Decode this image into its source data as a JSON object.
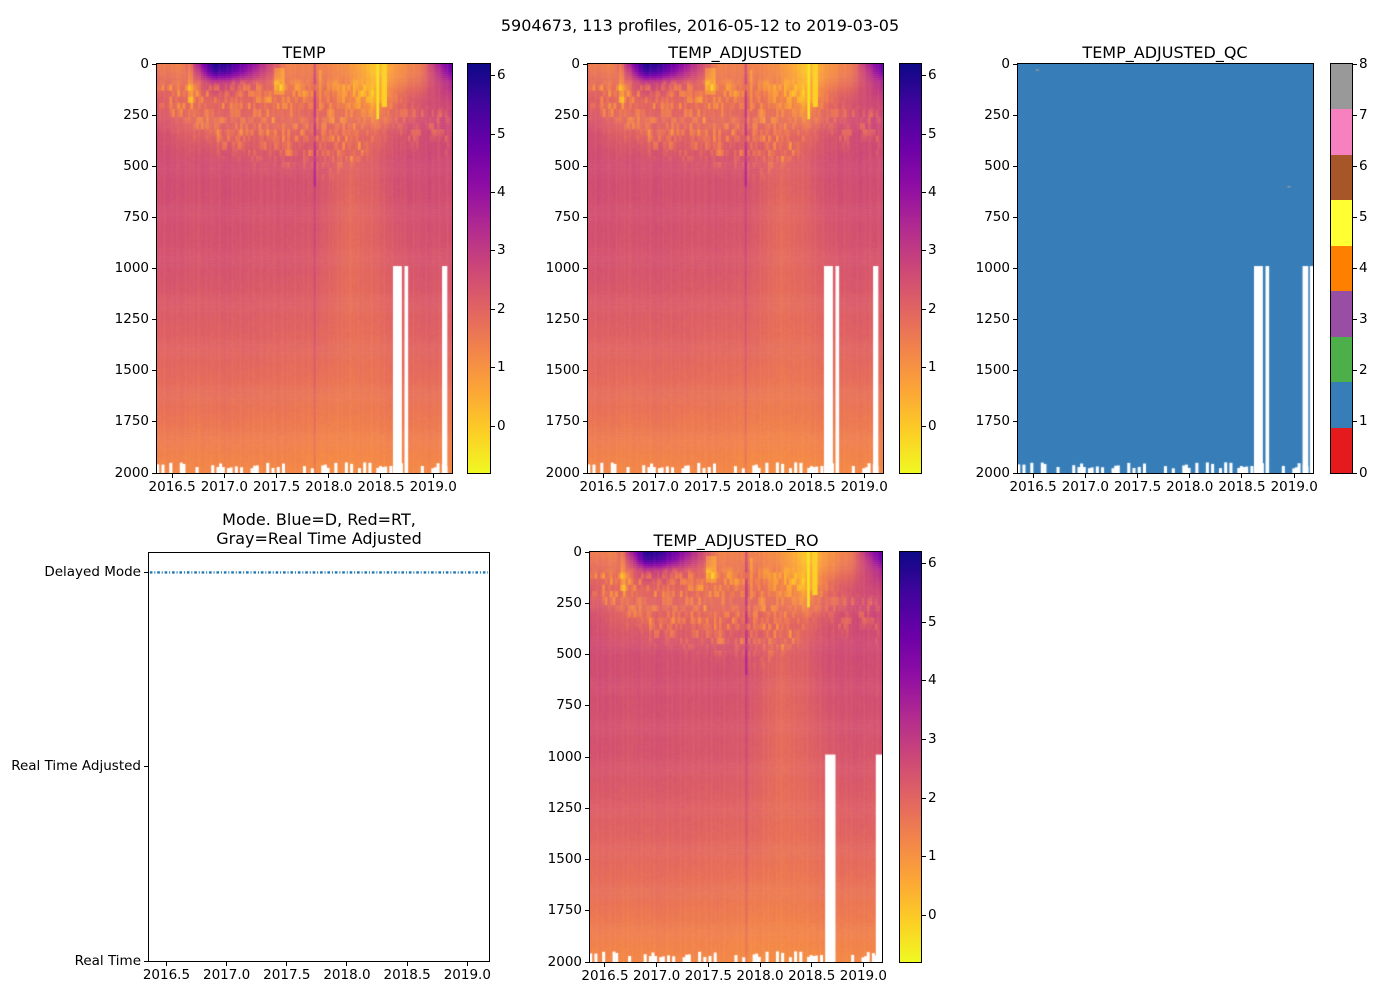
{
  "figure": {
    "suptitle": "5904673, 113 profiles, 2016-05-12 to 2019-03-05",
    "background": "#ffffff"
  },
  "axes_common": {
    "x_lim": [
      2016.355,
      2019.18
    ],
    "x_tick_values": [
      2016.5,
      2017.0,
      2017.5,
      2018.0,
      2018.5,
      2019.0
    ],
    "x_tick_labels": [
      "2016.5",
      "2017.0",
      "2017.5",
      "2018.0",
      "2018.5",
      "2019.0"
    ],
    "depth_lim": [
      0,
      2000
    ],
    "depth_ticks": [
      0,
      250,
      500,
      750,
      1000,
      1250,
      1500,
      1750,
      2000
    ],
    "y_inverted": true
  },
  "colors": {
    "plasma_stops": [
      "#0d0887",
      "#41049d",
      "#6a00a8",
      "#8f0da4",
      "#b12a90",
      "#cc4778",
      "#e16462",
      "#f2844b",
      "#fca636",
      "#fcce25",
      "#f0f921"
    ],
    "set1_flags": [
      "#e41a1c",
      "#377eb8",
      "#4daf4a",
      "#984ea3",
      "#ff7f00",
      "#ffff33",
      "#a65628",
      "#f781bf",
      "#999999"
    ],
    "qc_fill": "#377eb8",
    "missing": "#ffffff",
    "gray_flag": "#999999",
    "mode_line": "#1f77b4",
    "text": "#000000"
  },
  "subplots": {
    "temp": {
      "title": "TEMP"
    },
    "temp_adjusted": {
      "title": "TEMP_ADJUSTED"
    },
    "temp_adjusted_qc": {
      "title": "TEMP_ADJUSTED_QC"
    },
    "mode": {
      "title_line1": "Mode. Blue=D, Red=RT,",
      "title_line2": "Gray=Real Time Adjusted",
      "y_categories": [
        "Real Time",
        "Real Time Adjusted",
        "Delayed Mode"
      ]
    },
    "temp_adjusted_ro": {
      "title": "TEMP_ADJUSTED_RO"
    }
  },
  "chart_data": [
    {
      "id": "temp",
      "type": "heatmap",
      "title": "TEMP",
      "layout": "temp",
      "n_profiles": 113,
      "t_start": 2016.362,
      "t_end": 2019.172,
      "colorbar": {
        "ticks": [
          0,
          1,
          2,
          3,
          4,
          5,
          6
        ],
        "vmin": -0.8,
        "vmax": 6.2,
        "colormap": "plasma_r"
      },
      "field": {
        "times": [
          2016.36,
          2016.6,
          2016.75,
          2016.9,
          2017.05,
          2017.3,
          2017.6,
          2017.9,
          2018.2,
          2018.45,
          2018.65,
          2018.9,
          2019.05,
          2019.18
        ],
        "depths": [
          0,
          40,
          90,
          180,
          320,
          480,
          700,
          1000,
          1400,
          1700,
          2000
        ],
        "values": [
          [
            1.5,
            1.3,
            3.5,
            6.1,
            5.6,
            3.8,
            1.3,
            1.4,
            1.0,
            0.0,
            0.9,
            1.6,
            3.6,
            5.0
          ],
          [
            1.7,
            1.5,
            2.8,
            5.6,
            5.1,
            3.3,
            1.4,
            1.5,
            1.1,
            0.1,
            1.0,
            1.7,
            3.2,
            4.6
          ],
          [
            1.9,
            1.7,
            2.0,
            3.1,
            2.9,
            2.3,
            1.5,
            1.7,
            1.3,
            0.3,
            1.2,
            1.9,
            2.8,
            3.5
          ],
          [
            2.2,
            1.9,
            1.8,
            2.0,
            2.0,
            1.9,
            1.7,
            1.9,
            1.5,
            0.8,
            1.9,
            2.4,
            2.6,
            2.8
          ],
          [
            2.5,
            2.1,
            2.0,
            2.1,
            2.1,
            2.0,
            1.9,
            2.1,
            1.9,
            1.9,
            2.3,
            2.6,
            2.7,
            2.7
          ],
          [
            2.6,
            2.5,
            2.5,
            2.5,
            2.5,
            2.4,
            2.4,
            2.4,
            2.0,
            2.2,
            2.5,
            2.6,
            2.6,
            2.6
          ],
          [
            2.5,
            2.5,
            2.4,
            2.5,
            2.5,
            2.4,
            2.4,
            2.35,
            1.85,
            2.1,
            2.4,
            2.5,
            2.5,
            2.5
          ],
          [
            2.4,
            2.4,
            2.3,
            2.4,
            2.4,
            2.3,
            2.3,
            2.2,
            1.8,
            2.0,
            2.2,
            2.4,
            2.3,
            2.4
          ],
          [
            2.0,
            2.0,
            2.0,
            2.0,
            2.0,
            2.0,
            1.9,
            1.9,
            1.7,
            1.75,
            1.9,
            2.0,
            2.0,
            2.0
          ],
          [
            1.7,
            1.7,
            1.6,
            1.7,
            1.7,
            1.6,
            1.6,
            1.5,
            1.45,
            1.5,
            1.6,
            1.6,
            1.6,
            1.6
          ],
          [
            1.2,
            1.2,
            1.2,
            1.2,
            1.2,
            1.2,
            1.2,
            1.1,
            1.1,
            1.1,
            1.15,
            1.2,
            1.2,
            1.2
          ]
        ]
      },
      "texture": {
        "speckle_bottom": {
          "t": [
            2016.36,
            2016.7,
            2017.0,
            2017.3,
            2017.7,
            2018.0,
            2018.3,
            2018.55,
            2018.8,
            2019.0,
            2019.18
          ],
          "d": [
            200,
            260,
            380,
            430,
            440,
            470,
            420,
            300,
            330,
            360,
            340
          ]
        },
        "speckle_top": {
          "t": [
            2016.36,
            2017.0,
            2018.3,
            2018.6,
            2018.85,
            2019.18
          ],
          "d": [
            80,
            70,
            60,
            120,
            190,
            210
          ]
        },
        "speckle_amp": {
          "t": [
            2016.36,
            2018.3,
            2018.45,
            2018.7,
            2018.85,
            2019.18
          ],
          "a": [
            1,
            1,
            0.5,
            0.5,
            0.85,
            0.85
          ]
        }
      },
      "features": [
        {
          "t": [
            2017.845,
            2017.878
          ],
          "d": [
            0,
            600
          ],
          "add": 1.0
        },
        {
          "t": [
            2017.845,
            2017.878
          ],
          "d": [
            600,
            2000
          ],
          "add": 0.35
        },
        {
          "t": [
            2017.898,
            2017.94
          ],
          "d": [
            30,
            230
          ],
          "add": -0.7
        },
        {
          "t": [
            2018.452,
            2018.492
          ],
          "d": [
            0,
            270
          ],
          "set": -0.45
        },
        {
          "t": [
            2018.518,
            2018.552
          ],
          "d": [
            0,
            210
          ],
          "set": -0.15
        },
        {
          "t": [
            2017.47,
            2017.585
          ],
          "d": [
            20,
            150
          ],
          "add": -0.85
        },
        {
          "t": [
            2016.66,
            2016.7
          ],
          "d": [
            0,
            190
          ],
          "add": -0.6
        }
      ],
      "deep_gaps": [
        [
          2018.615,
          2018.7
        ],
        [
          2018.725,
          2018.76
        ],
        [
          2019.085,
          2019.135
        ]
      ],
      "deep_gap_top": 988,
      "bottom_gap_depth": 1948,
      "bottom_gap_fraction": 0.43
    },
    {
      "id": "temp_adjusted",
      "type": "heatmap",
      "title": "TEMP_ADJUSTED",
      "layout": "adj",
      "field_ref": "temp",
      "colorbar": {
        "ticks": [
          0,
          1,
          2,
          3,
          4,
          5,
          6
        ],
        "vmin": -0.8,
        "vmax": 6.2,
        "colormap": "plasma_r"
      },
      "deep_gaps": [
        [
          2018.615,
          2018.7
        ],
        [
          2018.725,
          2018.76
        ],
        [
          2019.085,
          2019.135
        ]
      ]
    },
    {
      "id": "temp_adjusted_qc",
      "type": "heatmap",
      "title": "TEMP_ADJUSTED_QC",
      "layout": "qc",
      "categorical": true,
      "fill_flag": 1,
      "colorbar": {
        "ticks": [
          0,
          1,
          2,
          3,
          4,
          5,
          6,
          7,
          8
        ],
        "vmin": 0,
        "vmax": 8,
        "colormap": "Set1"
      },
      "flag_marks": [
        {
          "t": 2016.54,
          "d": 30,
          "flag": 8
        },
        {
          "t": 2018.95,
          "d": 600,
          "flag": 8
        }
      ],
      "deep_gaps": [
        [
          2018.615,
          2018.7
        ],
        [
          2018.725,
          2018.76
        ],
        [
          2019.08,
          2019.135
        ],
        [
          2019.15,
          2019.18
        ]
      ]
    },
    {
      "id": "mode",
      "type": "line",
      "title": "Mode. Blue=D, Red=RT, Gray=Real Time Adjusted",
      "layout": "mode",
      "y_categories": [
        "Real Time",
        "Real Time Adjusted",
        "Delayed Mode"
      ],
      "series": [
        {
          "name": "data_mode",
          "constant_value": "Delayed Mode",
          "x_start": 2016.362,
          "x_end": 2019.172,
          "color": "#1f77b4",
          "linestyle": "dashdot"
        }
      ]
    },
    {
      "id": "temp_adjusted_ro",
      "type": "heatmap",
      "title": "TEMP_ADJUSTED_RO",
      "layout": "ro",
      "field_ref": "temp",
      "colorbar": {
        "ticks": [
          0,
          1,
          2,
          3,
          4,
          5,
          6
        ],
        "vmin": -0.8,
        "vmax": 6.2,
        "colormap": "plasma_r"
      },
      "deep_gaps": [
        [
          2018.63,
          2018.73
        ],
        [
          2019.12,
          2019.18
        ]
      ]
    }
  ]
}
